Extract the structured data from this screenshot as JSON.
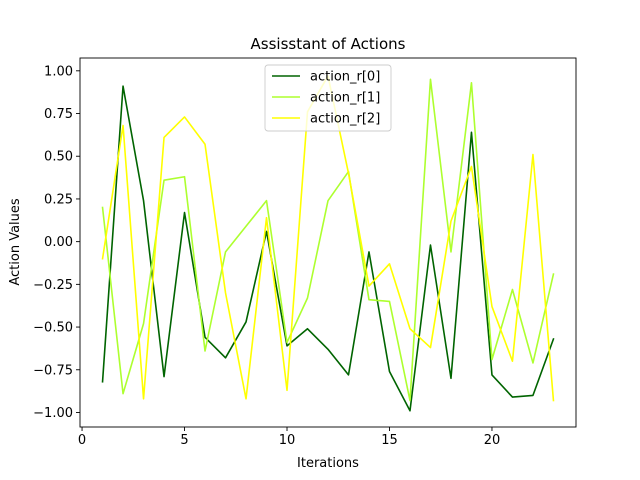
{
  "chart_data": {
    "type": "line",
    "title": "Assisstant of Actions",
    "xlabel": "Iterations",
    "ylabel": "Action Values",
    "xlim": [
      -0.1,
      24.1
    ],
    "ylim": [
      -1.085,
      1.075
    ],
    "xticks": [
      0,
      5,
      10,
      15,
      20
    ],
    "yticks": [
      -1.0,
      -0.75,
      -0.5,
      -0.25,
      0.0,
      0.25,
      0.5,
      0.75,
      1.0
    ],
    "ytick_labels": [
      "−1.00",
      "−0.75",
      "−0.50",
      "−0.25",
      "0.00",
      "0.25",
      "0.50",
      "0.75",
      "1.00"
    ],
    "grid": false,
    "legend_position": "upper center",
    "x": [
      1,
      2,
      3,
      4,
      5,
      6,
      7,
      8,
      9,
      10,
      11,
      12,
      13,
      14,
      15,
      16,
      17,
      18,
      19,
      20,
      21,
      22,
      23
    ],
    "series": [
      {
        "name": "action_r[0]",
        "color": "#006400",
        "values": [
          -0.82,
          0.91,
          0.24,
          -0.79,
          0.17,
          -0.56,
          -0.68,
          -0.47,
          0.06,
          -0.61,
          -0.51,
          -0.63,
          -0.78,
          -0.06,
          -0.76,
          -0.99,
          -0.02,
          -0.8,
          0.64,
          -0.78,
          -0.91,
          -0.9,
          -0.57
        ]
      },
      {
        "name": "action_r[1]",
        "color": "#adff2f",
        "values": [
          0.2,
          -0.89,
          -0.48,
          0.36,
          0.38,
          -0.64,
          -0.06,
          0.09,
          0.24,
          -0.59,
          -0.33,
          0.24,
          0.41,
          -0.34,
          -0.35,
          -0.93,
          0.95,
          -0.06,
          0.93,
          -0.69,
          -0.28,
          -0.71,
          -0.19
        ]
      },
      {
        "name": "action_r[2]",
        "color": "#ffff00",
        "values": [
          -0.1,
          0.68,
          -0.92,
          0.61,
          0.73,
          0.57,
          -0.3,
          -0.92,
          0.14,
          -0.87,
          0.76,
          0.97,
          0.4,
          -0.26,
          -0.13,
          -0.51,
          -0.62,
          0.12,
          0.44,
          -0.38,
          -0.7,
          0.51,
          -0.93
        ]
      }
    ]
  }
}
